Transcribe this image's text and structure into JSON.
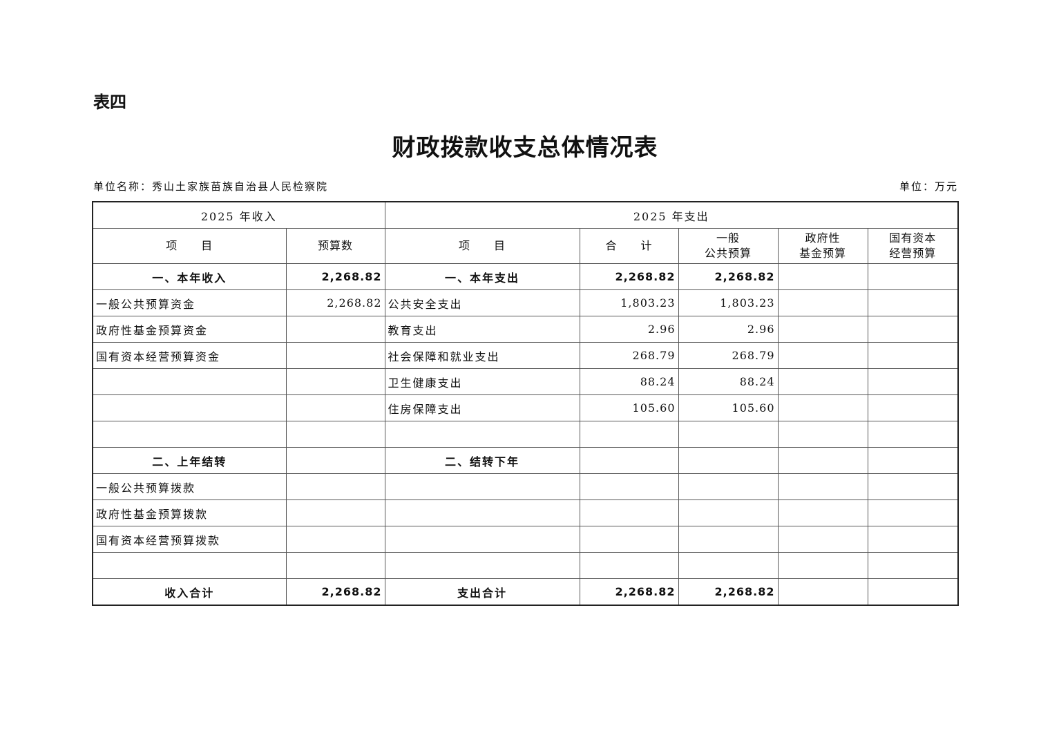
{
  "label": "表四",
  "title": "财政拨款收支总体情况表",
  "unit_name": "单位名称：秀山土家族苗族自治县人民检察院",
  "unit": "单位：万元",
  "table": {
    "income_header": "2025 年收入",
    "expense_header": "2025 年支出",
    "columns": [
      "项　　目",
      "预算数",
      "项　　目",
      "合　　计",
      "一般\n公共预算",
      "政府性\n基金预算",
      "国有资本\n经营预算"
    ],
    "rows": [
      {
        "bold": true,
        "cells": [
          "一、本年收入",
          "2,268.82",
          "一、本年支出",
          "2,268.82",
          "2,268.82",
          "",
          ""
        ]
      },
      {
        "cells": [
          "一般公共预算资金",
          "2,268.82",
          "公共安全支出",
          "1,803.23",
          "1,803.23",
          "",
          ""
        ]
      },
      {
        "cells": [
          "政府性基金预算资金",
          "",
          "教育支出",
          "2.96",
          "2.96",
          "",
          ""
        ]
      },
      {
        "cells": [
          "国有资本经营预算资金",
          "",
          "社会保障和就业支出",
          "268.79",
          "268.79",
          "",
          ""
        ]
      },
      {
        "cells": [
          "",
          "",
          "卫生健康支出",
          "88.24",
          "88.24",
          "",
          ""
        ]
      },
      {
        "cells": [
          "",
          "",
          "住房保障支出",
          "105.60",
          "105.60",
          "",
          ""
        ]
      },
      {
        "cells": [
          "",
          "",
          "",
          "",
          "",
          "",
          ""
        ]
      },
      {
        "bold": true,
        "cells": [
          "二、上年结转",
          "",
          "二、结转下年",
          "",
          "",
          "",
          ""
        ]
      },
      {
        "cells": [
          "一般公共预算拨款",
          "",
          "",
          "",
          "",
          "",
          ""
        ]
      },
      {
        "cells": [
          "政府性基金预算拨款",
          "",
          "",
          "",
          "",
          "",
          ""
        ]
      },
      {
        "cells": [
          "国有资本经营预算拨款",
          "",
          "",
          "",
          "",
          "",
          ""
        ]
      },
      {
        "cells": [
          "",
          "",
          "",
          "",
          "",
          "",
          ""
        ]
      },
      {
        "bold": true,
        "cells": [
          "收入合计",
          "2,268.82",
          "支出合计",
          "2,268.82",
          "2,268.82",
          "",
          ""
        ]
      }
    ]
  }
}
